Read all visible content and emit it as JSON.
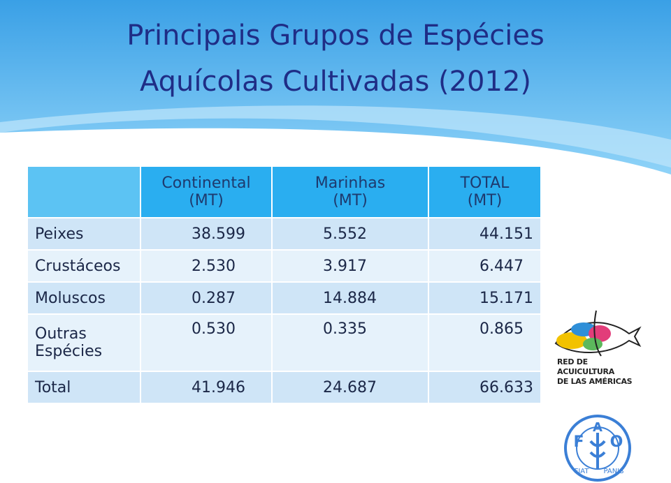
{
  "title": {
    "line1": "Principais Grupos de Espécies",
    "line2": "Aquícolas Cultivadas (2012)"
  },
  "table": {
    "header": [
      "",
      "Continental\n(MT)",
      "Marinhas\n(MT)",
      "TOTAL\n(MT)"
    ],
    "rows": [
      [
        "Peixes",
        "38.599",
        "5.552",
        "44.151"
      ],
      [
        "Crustáceos",
        "2.530",
        "3.917",
        "6.447"
      ],
      [
        "Moluscos",
        "0.287",
        "14.884",
        "15.171"
      ],
      [
        "Outras\nEspécies",
        "0.530",
        "0.335",
        "0.865"
      ],
      [
        "Total",
        "41.946",
        "24.687",
        "66.633"
      ]
    ]
  },
  "logos": {
    "red": [
      "RED DE",
      "ACUICULTURA",
      "DE LAS AMÉRICAS"
    ],
    "fao": {
      "letters": [
        "F",
        "A",
        "O"
      ],
      "motto": [
        "FIAT",
        "PANIS"
      ]
    }
  }
}
